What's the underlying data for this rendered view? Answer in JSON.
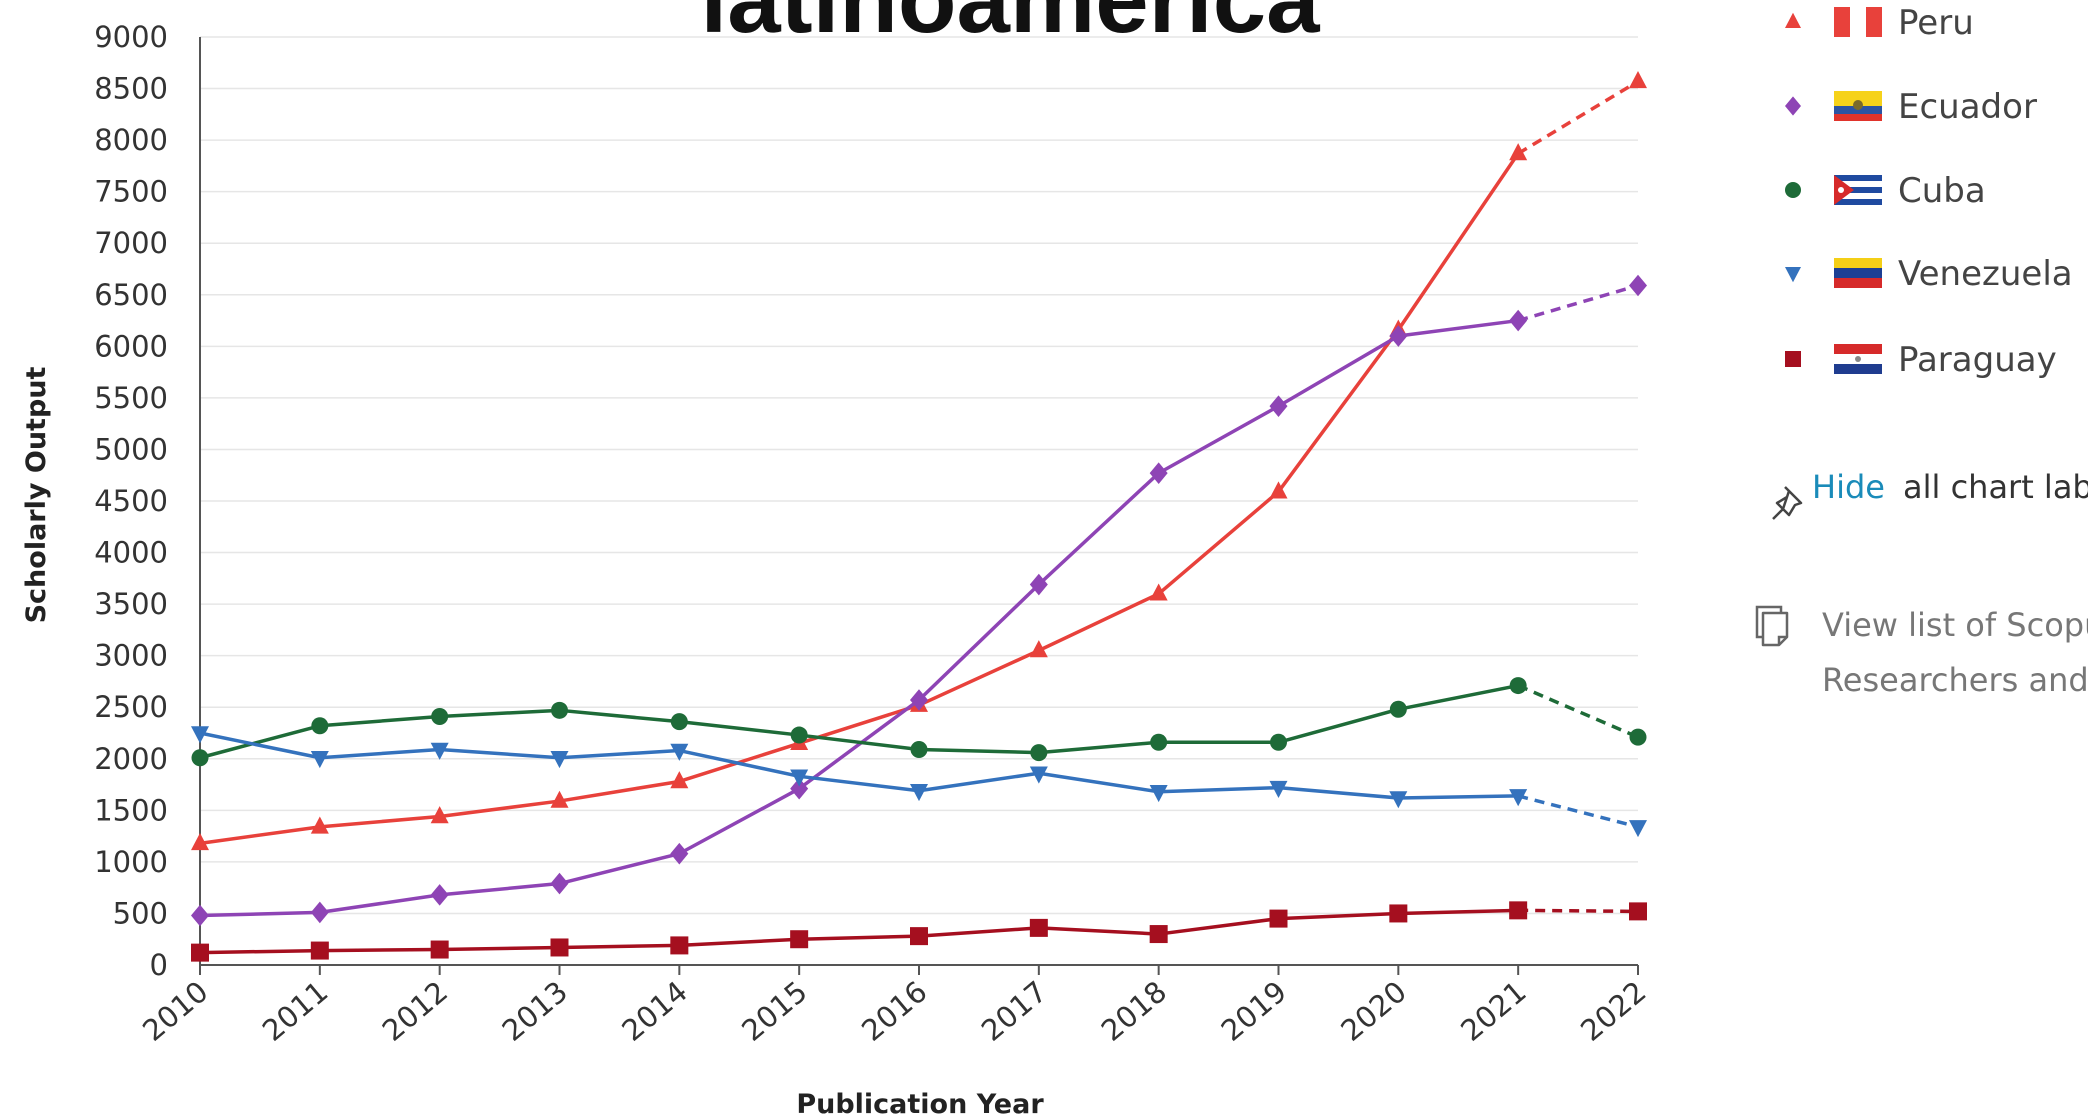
{
  "chart_data": {
    "type": "line",
    "title": "latinoamerica",
    "xlabel": "Publication Year",
    "ylabel": "Scholarly Output",
    "x": [
      2010,
      2011,
      2012,
      2013,
      2014,
      2015,
      2016,
      2017,
      2018,
      2019,
      2020,
      2021,
      2022
    ],
    "ylim": [
      0,
      9000
    ],
    "yticks": [
      0,
      500,
      1000,
      1500,
      2000,
      2500,
      3000,
      3500,
      4000,
      4500,
      5000,
      5500,
      6000,
      6500,
      7000,
      7500,
      8000,
      8500,
      9000
    ],
    "grid": true,
    "legend_position": "right",
    "projected_last_segment": true,
    "series": [
      {
        "name": "Peru",
        "color": "#e8413b",
        "marker": "triangle-up",
        "values": [
          1180,
          1340,
          1440,
          1590,
          1780,
          2150,
          2520,
          3050,
          3600,
          4590,
          6160,
          7870,
          8570
        ]
      },
      {
        "name": "Ecuador",
        "color": "#8e44b5",
        "marker": "diamond",
        "values": [
          480,
          510,
          680,
          790,
          1080,
          1710,
          2570,
          3690,
          4770,
          5420,
          6100,
          6250,
          6590
        ]
      },
      {
        "name": "Cuba",
        "color": "#1e6b38",
        "marker": "circle",
        "values": [
          2010,
          2320,
          2410,
          2470,
          2360,
          2230,
          2090,
          2060,
          2160,
          2160,
          2480,
          2710,
          2210
        ]
      },
      {
        "name": "Venezuela",
        "color": "#3472bd",
        "marker": "triangle-down",
        "values": [
          2250,
          2010,
          2090,
          2010,
          2080,
          1830,
          1690,
          1860,
          1680,
          1720,
          1620,
          1640,
          1340
        ]
      },
      {
        "name": "Paraguay",
        "color": "#a50f1f",
        "marker": "square",
        "values": [
          120,
          140,
          150,
          170,
          190,
          250,
          280,
          360,
          300,
          450,
          500,
          530,
          520
        ]
      }
    ]
  },
  "sidebar": {
    "hide_link": "Hide",
    "hide_rest": "all chart labe",
    "view_line1": "View list of Scopu",
    "view_line2": "Researchers and C",
    "pin_icon": "pin-icon",
    "document_icon": "document-icon"
  }
}
